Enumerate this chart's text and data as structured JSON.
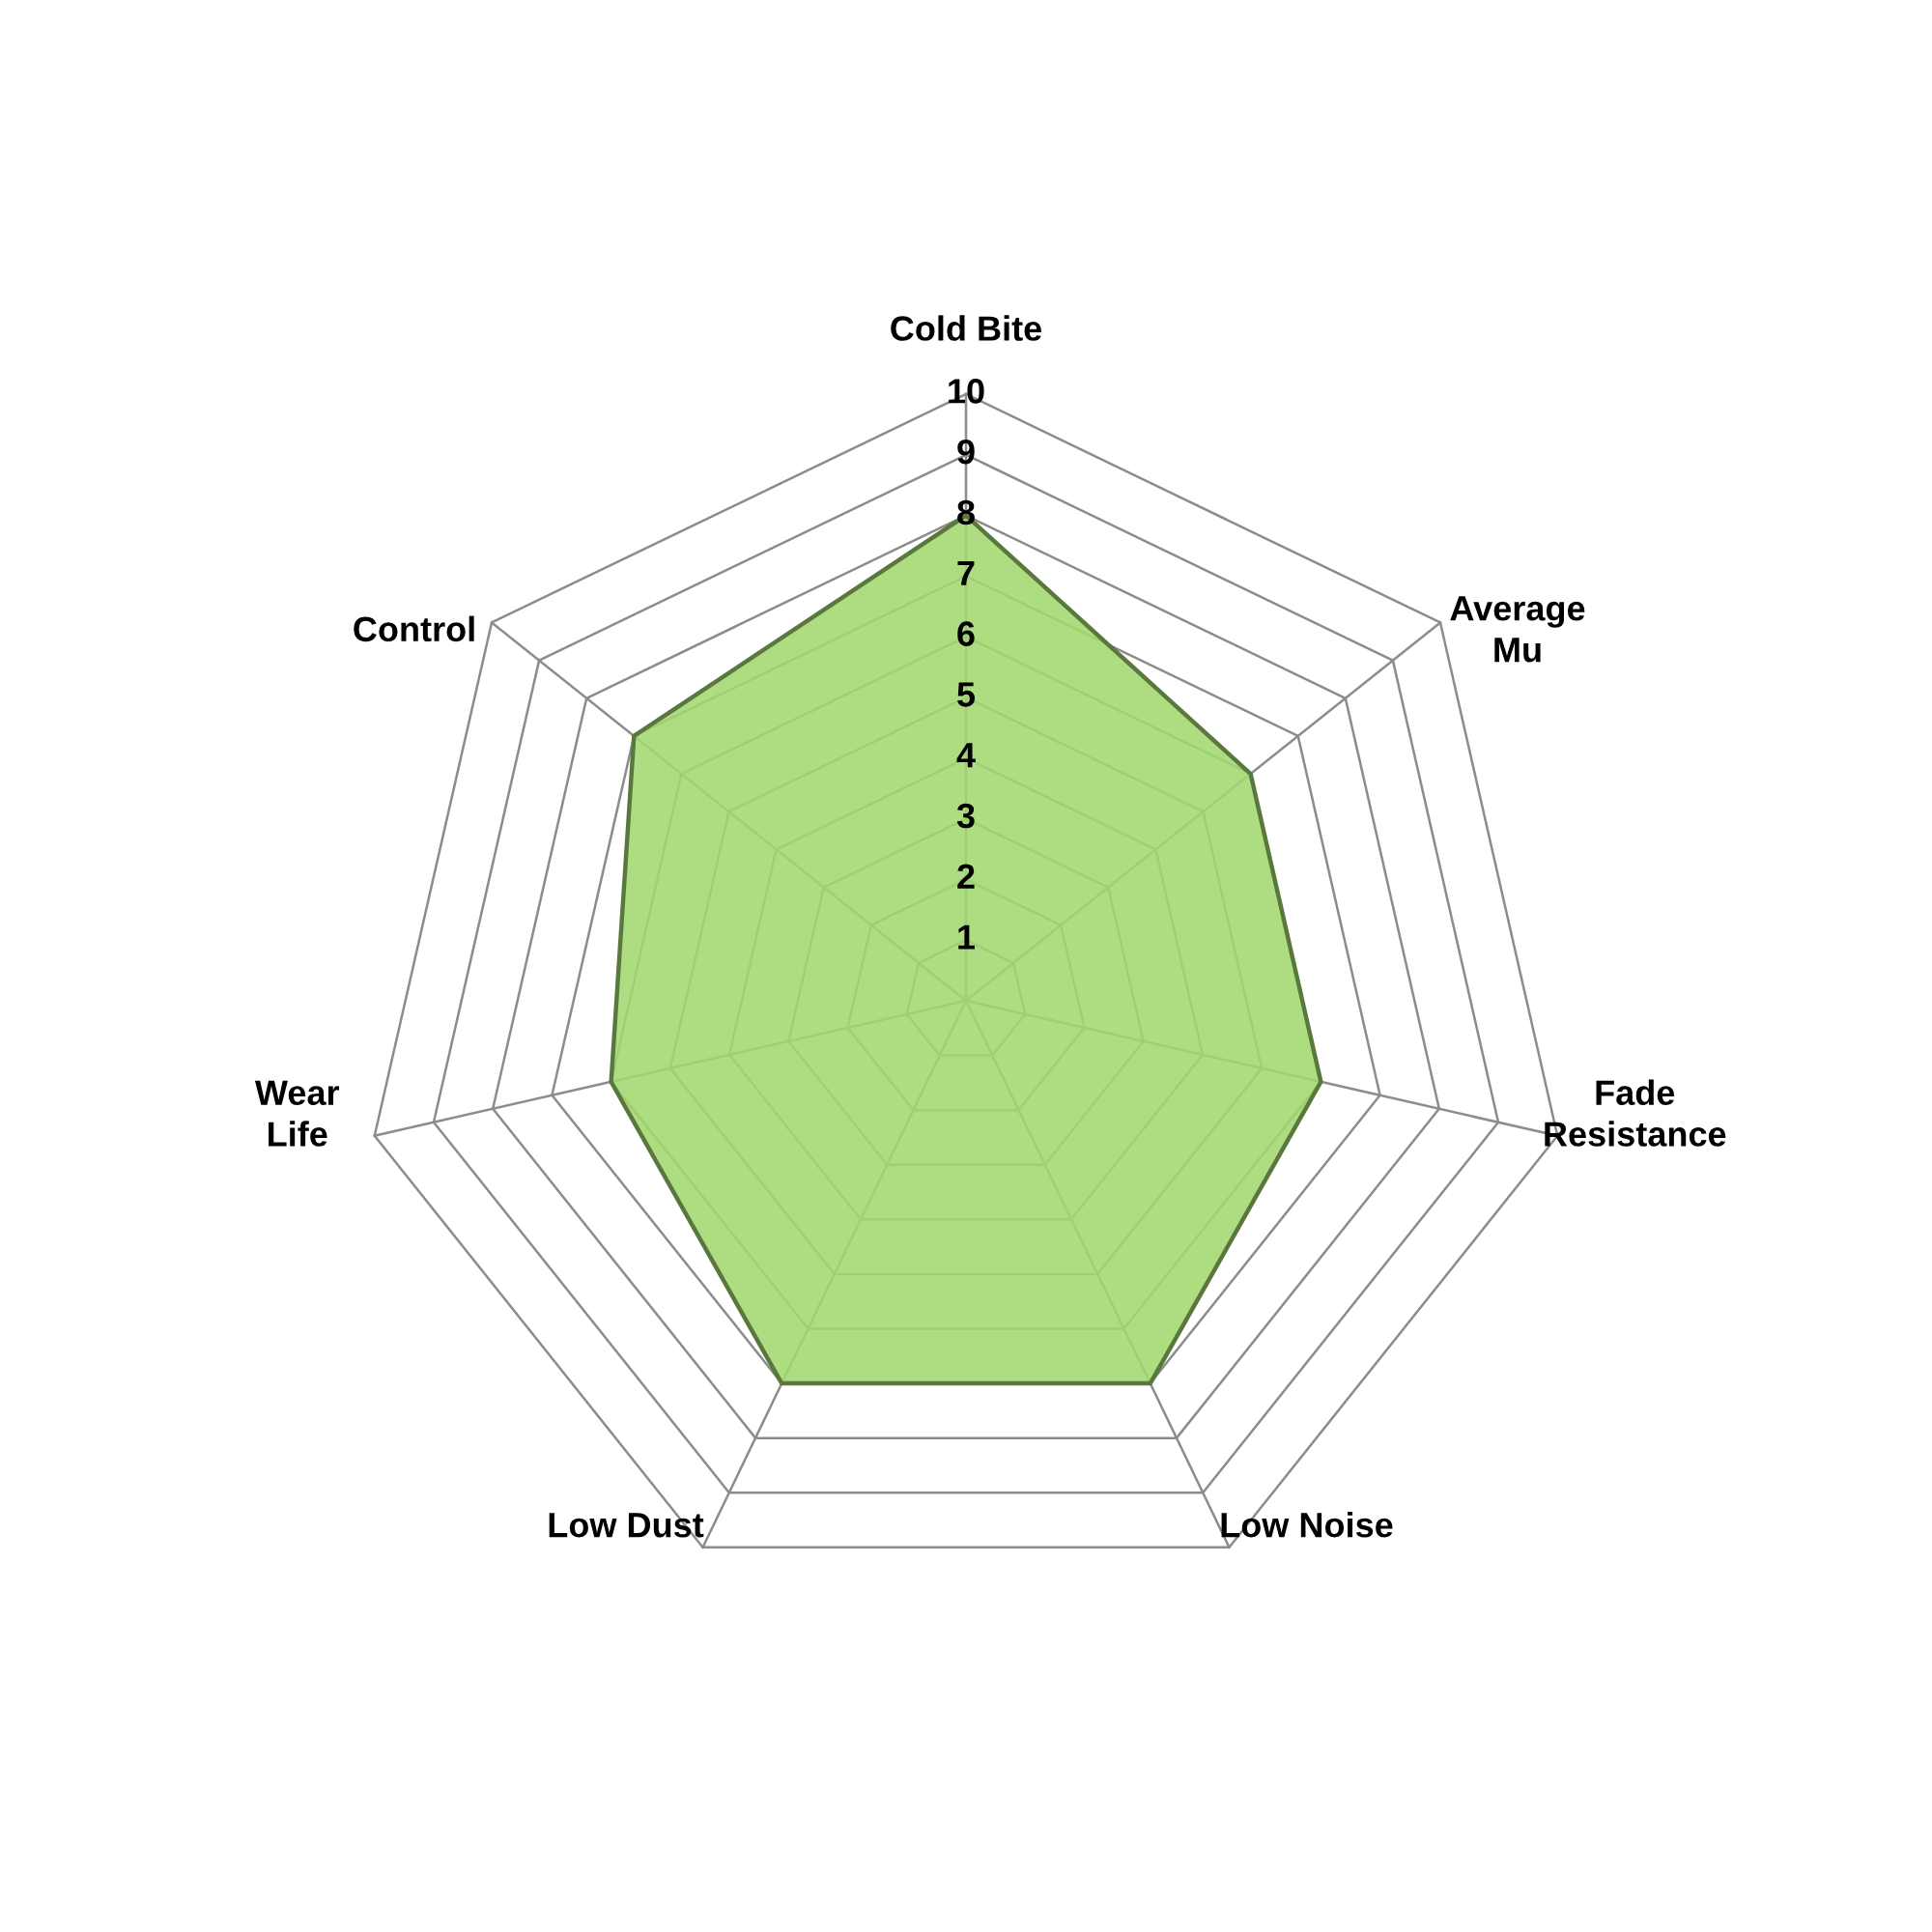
{
  "chart_data": {
    "type": "radar",
    "categories": [
      "Cold Bite",
      "Average\nMu",
      "Fade\nResistance",
      "Low Noise",
      "Low Dust",
      "Wear\nLife",
      "Control"
    ],
    "series": [
      {
        "color": "#a3d86f",
        "values": [
          8,
          6,
          6,
          7,
          7,
          6,
          7
        ]
      }
    ],
    "ylim": [
      0,
      10
    ],
    "yticks": [
      1,
      2,
      3,
      4,
      5,
      6,
      7,
      8,
      9,
      10
    ],
    "grid": true
  }
}
